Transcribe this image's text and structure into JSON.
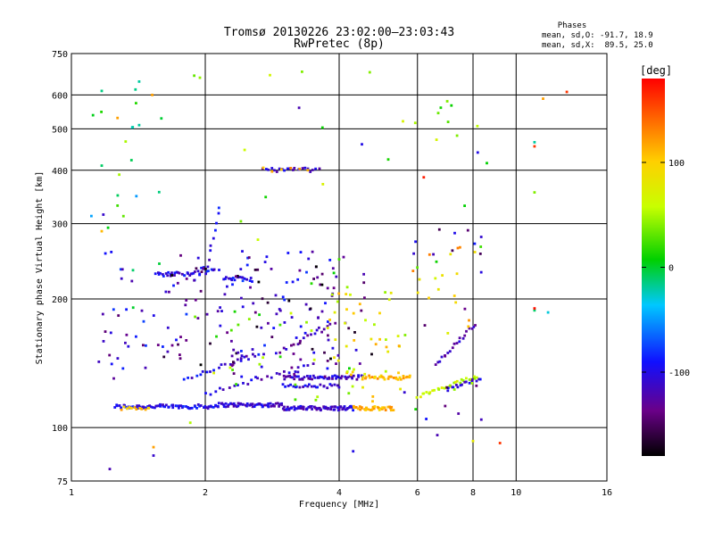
{
  "chart_data": {
    "type": "scatter",
    "title": "Tromsø 20130226 23:02:00–23:03:43",
    "subtitle": "RwPretec (8p)",
    "xlabel": "Frequency [MHz]",
    "ylabel": "Stationary phase Virtual Height [km]",
    "x_scale": "log",
    "y_scale": "log",
    "xlim": [
      1,
      16
    ],
    "ylim": [
      75,
      750
    ],
    "x_ticks": [
      1,
      2,
      4,
      6,
      8,
      10,
      16
    ],
    "x_tick_labels": [
      "1",
      "2",
      "4",
      "6",
      "8",
      "10",
      "16"
    ],
    "y_ticks": [
      75,
      100,
      200,
      300,
      400,
      500,
      600,
      750
    ],
    "y_tick_labels": [
      "75",
      "100",
      "200",
      "300",
      "400",
      "500",
      "600",
      "750"
    ],
    "grid": true,
    "info": {
      "heading": "Phases",
      "line_o": "mean, sd,O: -91.7, 18.9",
      "line_x": "mean, sd,X:  89.5, 25.0"
    },
    "colorbar": {
      "label": "[deg]",
      "range": [
        -180,
        180
      ],
      "ticks": [
        100,
        0,
        -100
      ],
      "tick_labels": [
        "100",
        "0",
        "-100"
      ]
    },
    "traces": [
      {
        "x": [
          1.25,
          2.1
        ],
        "y": [
          112,
          112
        ],
        "phase": -100,
        "n": 70
      },
      {
        "x": [
          2.1,
          3.0
        ],
        "y": [
          113,
          113
        ],
        "phase": -110,
        "n": 60
      },
      {
        "x": [
          3.0,
          4.3
        ],
        "y": [
          111,
          111
        ],
        "phase": -110,
        "n": 70
      },
      {
        "x": [
          4.3,
          5.3
        ],
        "y": [
          111,
          111
        ],
        "phase": 110,
        "n": 35
      },
      {
        "x": [
          1.3,
          1.5
        ],
        "y": [
          111,
          111
        ],
        "phase": 110,
        "n": 12
      },
      {
        "x": [
          3.0,
          4.5
        ],
        "y": [
          131,
          131
        ],
        "phase": -110,
        "n": 55
      },
      {
        "x": [
          4.5,
          5.8
        ],
        "y": [
          131,
          131
        ],
        "phase": 110,
        "n": 30
      },
      {
        "x": [
          3.0,
          4.0
        ],
        "y": [
          125,
          125
        ],
        "phase": -100,
        "n": 25
      },
      {
        "x": [
          6.0,
          8.2
        ],
        "y": [
          118,
          132
        ],
        "phase": 60,
        "n": 28
      },
      {
        "x": [
          7.0,
          8.3
        ],
        "y": [
          123,
          131
        ],
        "phase": -110,
        "n": 16
      },
      {
        "x": [
          1.55,
          1.95
        ],
        "y": [
          228,
          230
        ],
        "phase": -100,
        "n": 30
      },
      {
        "x": [
          1.95,
          2.1
        ],
        "y": [
          236,
          232
        ],
        "phase": -100,
        "n": 8
      },
      {
        "x": [
          2.2,
          2.55
        ],
        "y": [
          224,
          222
        ],
        "phase": -100,
        "n": 18
      },
      {
        "x": [
          2.7,
          3.6
        ],
        "y": [
          401,
          401
        ],
        "phase": -110,
        "n": 22
      },
      {
        "x": [
          2.7,
          3.4
        ],
        "y": [
          401,
          401
        ],
        "phase": 110,
        "n": 6
      },
      {
        "x": [
          6.6,
          8.1
        ],
        "y": [
          140,
          175
        ],
        "phase": -120,
        "n": 20
      },
      {
        "x": [
          1.8,
          2.7
        ],
        "y": [
          130,
          150
        ],
        "phase": -100,
        "n": 22
      },
      {
        "x": [
          2.0,
          3.5
        ],
        "y": [
          120,
          140
        ],
        "phase": -110,
        "n": 24
      },
      {
        "x": [
          2.9,
          3.9
        ],
        "y": [
          150,
          175
        ],
        "phase": -120,
        "n": 18
      },
      {
        "x": [
          2.0,
          2.15
        ],
        "y": [
          228,
          330
        ],
        "phase": -100,
        "n": 10
      }
    ],
    "scatter": [
      {
        "x": [
          1.15,
          4.5
        ],
        "y": [
          130,
          260
        ],
        "phase": -110,
        "n": 130
      },
      {
        "x": [
          1.6,
          4.8
        ],
        "y": [
          140,
          240
        ],
        "phase": -150,
        "n": 60
      },
      {
        "x": [
          3.8,
          5.5
        ],
        "y": [
          115,
          210
        ],
        "phase": 80,
        "n": 45
      },
      {
        "x": [
          1.05,
          9.0
        ],
        "y": [
          85,
          700
        ],
        "phase": 40,
        "n": 45
      },
      {
        "x": [
          5.8,
          8.2
        ],
        "y": [
          160,
          270
        ],
        "phase": 100,
        "n": 18
      },
      {
        "x": [
          2.0,
          4.5
        ],
        "y": [
          115,
          190
        ],
        "phase": 40,
        "n": 20
      },
      {
        "x": [
          5.6,
          8.5
        ],
        "y": [
          92,
          300
        ],
        "phase": -120,
        "n": 20
      },
      {
        "x": [
          1.05,
          1.6
        ],
        "y": [
          180,
          640
        ],
        "phase": -20,
        "n": 16
      }
    ],
    "isolated_points": [
      {
        "x": 3.25,
        "y": 560,
        "phase": -120
      },
      {
        "x": 4.5,
        "y": 460,
        "phase": -100
      },
      {
        "x": 1.42,
        "y": 645,
        "phase": -20
      },
      {
        "x": 1.42,
        "y": 510,
        "phase": -20
      },
      {
        "x": 1.27,
        "y": 530,
        "phase": 120
      },
      {
        "x": 1.52,
        "y": 600,
        "phase": 120
      },
      {
        "x": 3.3,
        "y": 680,
        "phase": 40
      },
      {
        "x": 7.0,
        "y": 580,
        "phase": 40
      },
      {
        "x": 11.0,
        "y": 465,
        "phase": -20
      },
      {
        "x": 11.0,
        "y": 455,
        "phase": 160
      },
      {
        "x": 11.5,
        "y": 588,
        "phase": 120
      },
      {
        "x": 13.0,
        "y": 610,
        "phase": 160
      },
      {
        "x": 11.0,
        "y": 355,
        "phase": 40
      },
      {
        "x": 1.17,
        "y": 410,
        "phase": -10
      },
      {
        "x": 6.2,
        "y": 385,
        "phase": 170
      },
      {
        "x": 1.22,
        "y": 80,
        "phase": -120
      },
      {
        "x": 1.53,
        "y": 90,
        "phase": 120
      },
      {
        "x": 1.53,
        "y": 86,
        "phase": -110
      },
      {
        "x": 4.3,
        "y": 88,
        "phase": -100
      },
      {
        "x": 6.65,
        "y": 96,
        "phase": -120
      },
      {
        "x": 8.0,
        "y": 93,
        "phase": 80
      },
      {
        "x": 9.2,
        "y": 92,
        "phase": 160
      },
      {
        "x": 11.0,
        "y": 188,
        "phase": -10
      },
      {
        "x": 11.0,
        "y": 190,
        "phase": 175
      },
      {
        "x": 11.8,
        "y": 186,
        "phase": -30
      },
      {
        "x": 8.2,
        "y": 440,
        "phase": -100
      },
      {
        "x": 1.18,
        "y": 315,
        "phase": -110
      },
      {
        "x": 1.17,
        "y": 288,
        "phase": 110
      }
    ]
  }
}
